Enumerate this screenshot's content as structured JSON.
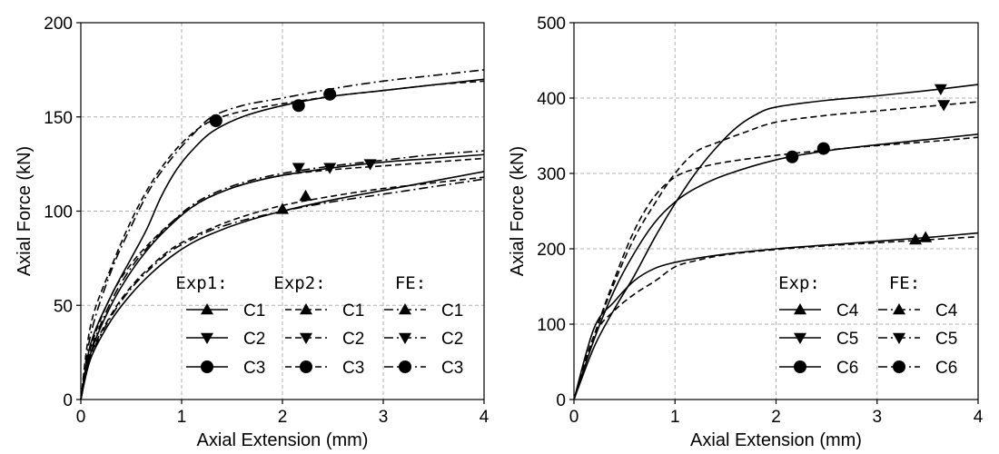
{
  "chart_data": [
    {
      "type": "line",
      "xlabel": "Axial Extension (mm)",
      "ylabel": "Axial Force (kN)",
      "xlim": [
        0,
        4
      ],
      "ylim": [
        0,
        200
      ],
      "xticks": [
        "0",
        "1",
        "2",
        "3",
        "4"
      ],
      "yticks": [
        "0",
        "50",
        "100",
        "150",
        "200"
      ],
      "grid": true,
      "legend_position": "bottom-right",
      "legend_groups": [
        {
          "title": "Exp1:",
          "style": "solid",
          "entries": [
            "C1",
            "C2",
            "C3"
          ]
        },
        {
          "title": "Exp2:",
          "style": "dashed",
          "entries": [
            "C1",
            "C2",
            "C3"
          ]
        },
        {
          "title": "FE:",
          "style": "dashdot",
          "entries": [
            "C1",
            "C2",
            "C3"
          ]
        }
      ],
      "series": [
        {
          "name": "C3",
          "style": "solid",
          "marker": "circle",
          "x": [
            0,
            0.1,
            0.3,
            0.5,
            0.65,
            0.8,
            0.95,
            1.1,
            1.3,
            1.6,
            2.0,
            2.5,
            3.0,
            3.5,
            4.0
          ],
          "y": [
            0,
            30,
            55,
            75,
            90,
            108,
            122,
            132,
            142,
            150,
            156,
            161,
            164,
            167,
            170
          ],
          "markers_x": [
            1.34,
            2.47
          ],
          "markers_y": [
            148,
            162
          ]
        },
        {
          "name": "C3",
          "style": "dashed",
          "marker": "circle",
          "x": [
            0,
            0.1,
            0.3,
            0.5,
            0.7,
            0.9,
            1.1,
            1.3,
            1.6,
            2.0,
            2.5,
            3.0,
            3.5,
            4.0
          ],
          "y": [
            0,
            40,
            70,
            95,
            115,
            130,
            141,
            148,
            153,
            157,
            161,
            164,
            167,
            169
          ],
          "markers_x": [
            1.34,
            2.16
          ],
          "markers_y": [
            148,
            156
          ]
        },
        {
          "name": "C3",
          "style": "dashdot",
          "marker": "circle",
          "x": [
            0,
            0.1,
            0.3,
            0.5,
            0.7,
            0.9,
            1.1,
            1.3,
            1.6,
            2.0,
            2.5,
            3.0,
            3.5,
            4.0
          ],
          "y": [
            0,
            35,
            68,
            92,
            113,
            128,
            140,
            150,
            156,
            160,
            165,
            169,
            172,
            175
          ],
          "markers_x": [],
          "markers_y": []
        },
        {
          "name": "C2",
          "style": "solid",
          "marker": "triangle-down",
          "x": [
            0,
            0.1,
            0.3,
            0.5,
            0.7,
            0.9,
            1.1,
            1.3,
            1.6,
            2.0,
            2.5,
            3.0,
            3.5,
            4.0
          ],
          "y": [
            0,
            25,
            50,
            68,
            82,
            93,
            102,
            108,
            114,
            119,
            123,
            126,
            128,
            130
          ],
          "markers_x": [
            2.16,
            2.47,
            2.87
          ],
          "markers_y": [
            123,
            123,
            125
          ]
        },
        {
          "name": "C2",
          "style": "dashed",
          "marker": "triangle-down",
          "x": [
            0,
            0.1,
            0.3,
            0.5,
            0.7,
            0.9,
            1.1,
            1.3,
            1.6,
            2.0,
            2.5,
            3.0,
            3.5,
            4.0
          ],
          "y": [
            0,
            28,
            55,
            72,
            84,
            94,
            102,
            108,
            114,
            119,
            122,
            124,
            126,
            128
          ],
          "markers_x": [],
          "markers_y": []
        },
        {
          "name": "C2",
          "style": "dashdot",
          "marker": "triangle-down",
          "x": [
            0,
            0.1,
            0.3,
            0.5,
            0.7,
            0.9,
            1.1,
            1.3,
            1.6,
            2.0,
            2.5,
            3.0,
            3.5,
            4.0
          ],
          "y": [
            0,
            26,
            52,
            70,
            83,
            94,
            103,
            109,
            115,
            120,
            124,
            127,
            130,
            132
          ],
          "markers_x": [],
          "markers_y": []
        },
        {
          "name": "C1",
          "style": "solid",
          "marker": "triangle-up",
          "x": [
            0,
            0.1,
            0.3,
            0.5,
            0.7,
            0.9,
            1.1,
            1.3,
            1.6,
            2.0,
            2.5,
            3.0,
            3.5,
            4.0
          ],
          "y": [
            0,
            22,
            42,
            56,
            67,
            76,
            83,
            88,
            94,
            100,
            106,
            111,
            116,
            121
          ],
          "markers_x": [
            2.0,
            2.23
          ],
          "markers_y": [
            101,
            108
          ]
        },
        {
          "name": "C1",
          "style": "dashed",
          "marker": "triangle-up",
          "x": [
            0,
            0.1,
            0.3,
            0.5,
            0.7,
            0.9,
            1.1,
            1.3,
            1.6,
            2.0,
            2.5,
            3.0,
            3.5,
            4.0
          ],
          "y": [
            0,
            24,
            45,
            60,
            71,
            80,
            86,
            91,
            97,
            103,
            108,
            112,
            115,
            118
          ],
          "markers_x": [],
          "markers_y": []
        },
        {
          "name": "C1",
          "style": "dashdot",
          "marker": "triangle-up",
          "x": [
            0,
            0.1,
            0.3,
            0.5,
            0.7,
            0.9,
            1.1,
            1.3,
            1.6,
            2.0,
            2.5,
            3.0,
            3.5,
            4.0
          ],
          "y": [
            0,
            23,
            44,
            59,
            70,
            79,
            85,
            90,
            95,
            100,
            105,
            109,
            113,
            117
          ],
          "markers_x": [],
          "markers_y": []
        }
      ]
    },
    {
      "type": "line",
      "xlabel": "Axial Extension (mm)",
      "ylabel": "Axial Force (kN)",
      "xlim": [
        0,
        4
      ],
      "ylim": [
        0,
        500
      ],
      "xticks": [
        "0",
        "1",
        "2",
        "3",
        "4"
      ],
      "yticks": [
        "0",
        "100",
        "200",
        "300",
        "400",
        "500"
      ],
      "grid": true,
      "legend_position": "bottom-right",
      "legend_groups": [
        {
          "title": "Exp:",
          "style": "solid",
          "entries": [
            "C4",
            "C5",
            "C6"
          ]
        },
        {
          "title": "FE:",
          "style": "dashdot",
          "entries": [
            "C4",
            "C5",
            "C6"
          ]
        }
      ],
      "series": [
        {
          "name": "C5",
          "style": "solid",
          "marker": "triangle-down",
          "x": [
            0,
            0.2,
            0.4,
            0.6,
            0.8,
            1.0,
            1.2,
            1.4,
            1.6,
            1.8,
            2.0,
            2.5,
            3.0,
            3.5,
            4.0
          ],
          "y": [
            0,
            70,
            120,
            165,
            215,
            260,
            300,
            333,
            360,
            378,
            388,
            397,
            403,
            410,
            418
          ],
          "markers_x": [
            3.63
          ],
          "markers_y": [
            412
          ]
        },
        {
          "name": "C5",
          "style": "dashed",
          "marker": "triangle-down",
          "x": [
            0,
            0.2,
            0.4,
            0.6,
            0.8,
            1.0,
            1.2,
            1.4,
            1.7,
            2.0,
            2.5,
            3.0,
            3.5,
            4.0
          ],
          "y": [
            0,
            85,
            155,
            215,
            260,
            300,
            328,
            340,
            355,
            368,
            377,
            383,
            389,
            395
          ],
          "markers_x": [
            3.66
          ],
          "markers_y": [
            391
          ]
        },
        {
          "name": "C6",
          "style": "solid",
          "marker": "circle",
          "x": [
            0,
            0.2,
            0.4,
            0.6,
            0.8,
            1.0,
            1.2,
            1.5,
            2.0,
            2.5,
            3.0,
            3.5,
            4.0
          ],
          "y": [
            0,
            80,
            145,
            195,
            235,
            262,
            280,
            298,
            318,
            330,
            338,
            345,
            352
          ],
          "markers_x": [
            2.16,
            2.47
          ],
          "markers_y": [
            322,
            333
          ]
        },
        {
          "name": "C6",
          "style": "dashed",
          "marker": "circle",
          "x": [
            0,
            0.2,
            0.4,
            0.6,
            0.8,
            1.0,
            1.2,
            1.5,
            2.0,
            2.5,
            3.0,
            3.5,
            4.0
          ],
          "y": [
            0,
            85,
            160,
            225,
            270,
            295,
            306,
            315,
            324,
            331,
            337,
            342,
            348
          ],
          "markers_x": [],
          "markers_y": []
        },
        {
          "name": "C4",
          "style": "solid",
          "marker": "triangle-up",
          "x": [
            0,
            0.2,
            0.4,
            0.6,
            0.8,
            1.0,
            1.2,
            1.5,
            2.0,
            2.5,
            3.0,
            3.5,
            4.0
          ],
          "y": [
            0,
            95,
            130,
            158,
            174,
            182,
            187,
            193,
            200,
            205,
            210,
            215,
            221
          ],
          "markers_x": [
            3.38,
            3.48
          ],
          "markers_y": [
            212,
            215
          ]
        },
        {
          "name": "C4",
          "style": "dashed",
          "marker": "triangle-up",
          "x": [
            0,
            0.2,
            0.4,
            0.6,
            0.8,
            1.0,
            1.2,
            1.5,
            2.0,
            2.5,
            3.0,
            3.5,
            4.0
          ],
          "y": [
            0,
            85,
            118,
            140,
            157,
            176,
            184,
            192,
            199,
            204,
            208,
            212,
            216
          ],
          "markers_x": [],
          "markers_y": []
        }
      ]
    }
  ]
}
